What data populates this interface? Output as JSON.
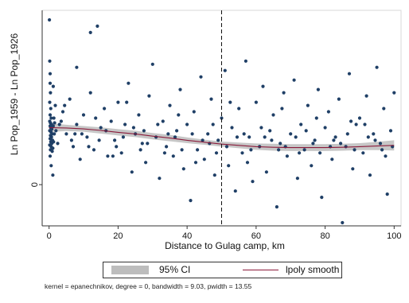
{
  "chart_data": {
    "type": "scatter",
    "xlabel": "Distance to Gulag camp, km",
    "ylabel": "Ln Pop_1959 - Ln Pop_1926",
    "xlim": [
      -2,
      102
    ],
    "ylim": [
      -1.3,
      5.5
    ],
    "x_ticks": [
      0,
      20,
      40,
      60,
      80,
      100
    ],
    "y_ticks": [
      0
    ],
    "grid": false,
    "reference_line": {
      "x": 50,
      "style": "dashed"
    },
    "smooth": {
      "name": "lpoly smooth",
      "x": [
        0,
        5,
        10,
        15,
        20,
        25,
        30,
        35,
        40,
        45,
        50,
        55,
        60,
        65,
        70,
        75,
        80,
        85,
        90,
        95,
        100
      ],
      "y": [
        1.8,
        1.79,
        1.76,
        1.71,
        1.65,
        1.6,
        1.53,
        1.47,
        1.4,
        1.34,
        1.28,
        1.24,
        1.2,
        1.18,
        1.17,
        1.17,
        1.17,
        1.18,
        1.2,
        1.22,
        1.24
      ],
      "ci_lower": [
        1.66,
        1.69,
        1.67,
        1.61,
        1.55,
        1.5,
        1.43,
        1.37,
        1.31,
        1.26,
        1.2,
        1.15,
        1.1,
        1.07,
        1.06,
        1.06,
        1.06,
        1.07,
        1.09,
        1.09,
        1.08
      ],
      "ci_upper": [
        1.94,
        1.89,
        1.85,
        1.81,
        1.75,
        1.7,
        1.63,
        1.57,
        1.49,
        1.42,
        1.36,
        1.33,
        1.3,
        1.29,
        1.28,
        1.28,
        1.28,
        1.29,
        1.31,
        1.35,
        1.4
      ]
    },
    "points": [
      [
        0.1,
        5.2
      ],
      [
        0.2,
        3.9
      ],
      [
        0.3,
        3.5
      ],
      [
        0.3,
        3.2
      ],
      [
        0.4,
        2.9
      ],
      [
        0.2,
        2.6
      ],
      [
        0.5,
        2.4
      ],
      [
        0.3,
        2.2
      ],
      [
        0.6,
        2.1
      ],
      [
        0.2,
        2.0
      ],
      [
        0.4,
        1.95
      ],
      [
        0.7,
        1.9
      ],
      [
        0.3,
        1.85
      ],
      [
        0.5,
        1.8
      ],
      [
        0.8,
        1.75
      ],
      [
        0.2,
        1.7
      ],
      [
        0.6,
        1.65
      ],
      [
        0.9,
        1.6
      ],
      [
        0.4,
        1.55
      ],
      [
        0.7,
        1.5
      ],
      [
        0.3,
        1.45
      ],
      [
        1.0,
        1.4
      ],
      [
        0.5,
        1.35
      ],
      [
        0.8,
        1.3
      ],
      [
        0.2,
        1.25
      ],
      [
        0.6,
        1.2
      ],
      [
        1.1,
        1.15
      ],
      [
        0.4,
        1.1
      ],
      [
        0.9,
        1.05
      ],
      [
        0.3,
        0.9
      ],
      [
        1.2,
        1.85
      ],
      [
        1.4,
        2.1
      ],
      [
        1.5,
        1.6
      ],
      [
        1.3,
        1.35
      ],
      [
        1.6,
        1.95
      ],
      [
        1.2,
        3.1
      ],
      [
        1.8,
        2.5
      ],
      [
        2.0,
        1.7
      ],
      [
        1.1,
        0.3
      ],
      [
        0.6,
        0.6
      ],
      [
        3,
        1.9
      ],
      [
        4,
        2.3
      ],
      [
        5,
        1.6
      ],
      [
        6,
        2.7
      ],
      [
        7,
        1.2
      ],
      [
        8,
        1.9
      ],
      [
        8,
        3.7
      ],
      [
        9,
        0.8
      ],
      [
        10,
        2.2
      ],
      [
        11,
        1.5
      ],
      [
        12,
        4.8
      ],
      [
        12,
        2.9
      ],
      [
        13,
        1.1
      ],
      [
        14,
        5.0
      ],
      [
        15,
        1.8
      ],
      [
        16,
        2.4
      ],
      [
        17,
        0.9
      ],
      [
        18,
        2.0
      ],
      [
        19,
        1.4
      ],
      [
        20,
        2.6
      ],
      [
        21,
        1.0
      ],
      [
        22,
        1.9
      ],
      [
        23,
        3.2
      ],
      [
        24,
        0.4
      ],
      [
        25,
        1.6
      ],
      [
        26,
        2.2
      ],
      [
        27,
        1.3
      ],
      [
        28,
        0.7
      ],
      [
        29,
        2.8
      ],
      [
        30,
        3.8
      ],
      [
        31,
        1.5
      ],
      [
        32,
        0.2
      ],
      [
        33,
        2.0
      ],
      [
        34,
        1.2
      ],
      [
        35,
        2.5
      ],
      [
        36,
        0.9
      ],
      [
        37,
        1.7
      ],
      [
        38,
        3.0
      ],
      [
        39,
        0.5
      ],
      [
        40,
        1.9
      ],
      [
        41,
        -0.5
      ],
      [
        42,
        2.3
      ],
      [
        43,
        1.1
      ],
      [
        44,
        3.4
      ],
      [
        45,
        0.8
      ],
      [
        46,
        1.6
      ],
      [
        47,
        2.7
      ],
      [
        48,
        0.3
      ],
      [
        49,
        1.4
      ],
      [
        50,
        2.1
      ],
      [
        51,
        3.6
      ],
      [
        52,
        0.6
      ],
      [
        53,
        1.8
      ],
      [
        54,
        -0.2
      ],
      [
        55,
        2.4
      ],
      [
        56,
        1.0
      ],
      [
        57,
        3.9
      ],
      [
        58,
        1.5
      ],
      [
        59,
        0.1
      ],
      [
        60,
        2.6
      ],
      [
        61,
        1.2
      ],
      [
        62,
        3.1
      ],
      [
        63,
        0.4
      ],
      [
        64,
        1.7
      ],
      [
        65,
        2.2
      ],
      [
        66,
        -0.7
      ],
      [
        67,
        1.3
      ],
      [
        68,
        2.9
      ],
      [
        69,
        0.9
      ],
      [
        70,
        1.6
      ],
      [
        71,
        3.3
      ],
      [
        72,
        0.2
      ],
      [
        73,
        1.9
      ],
      [
        74,
        1.1
      ],
      [
        75,
        2.5
      ],
      [
        76,
        0.6
      ],
      [
        77,
        1.4
      ],
      [
        78,
        3.0
      ],
      [
        79,
        -0.4
      ],
      [
        80,
        1.8
      ],
      [
        81,
        2.3
      ],
      [
        82,
        0.8
      ],
      [
        83,
        1.5
      ],
      [
        84,
        2.7
      ],
      [
        85,
        -1.2
      ],
      [
        86,
        1.2
      ],
      [
        87,
        3.5
      ],
      [
        88,
        0.5
      ],
      [
        89,
        1.9
      ],
      [
        90,
        2.1
      ],
      [
        91,
        1.0
      ],
      [
        92,
        2.8
      ],
      [
        93,
        0.3
      ],
      [
        94,
        1.6
      ],
      [
        95,
        3.7
      ],
      [
        96,
        1.3
      ],
      [
        97,
        2.4
      ],
      [
        98,
        -0.3
      ],
      [
        99,
        1.7
      ],
      [
        100,
        2.9
      ],
      [
        4.5,
        2.5
      ],
      [
        9.5,
        1.6
      ],
      [
        13.5,
        2.1
      ],
      [
        18.5,
        0.9
      ],
      [
        22.5,
        2.6
      ],
      [
        27.5,
        1.7
      ],
      [
        33.5,
        1.0
      ],
      [
        37.5,
        2.2
      ],
      [
        42.5,
        0.7
      ],
      [
        47.5,
        1.9
      ],
      [
        52.5,
        2.6
      ],
      [
        57.5,
        0.7
      ],
      [
        62.5,
        1.5
      ],
      [
        67.5,
        2.4
      ],
      [
        72.5,
        1.0
      ],
      [
        77.5,
        2.1
      ],
      [
        82.5,
        1.4
      ],
      [
        87.5,
        2.0
      ],
      [
        92.5,
        1.5
      ],
      [
        97.5,
        0.9
      ],
      [
        6.5,
        1.4
      ],
      [
        16.5,
        1.7
      ],
      [
        26.5,
        1.1
      ],
      [
        36.5,
        1.5
      ],
      [
        46.5,
        1.3
      ],
      [
        56.5,
        1.6
      ],
      [
        66.5,
        1.1
      ],
      [
        76.5,
        1.3
      ],
      [
        86.5,
        1.6
      ],
      [
        96.5,
        1.1
      ],
      [
        2.5,
        1.3
      ],
      [
        11.5,
        1.2
      ],
      [
        21.5,
        1.5
      ],
      [
        31.5,
        1.9
      ],
      [
        41.5,
        1.6
      ],
      [
        51.5,
        1.2
      ],
      [
        61.5,
        1.8
      ],
      [
        71.5,
        1.5
      ],
      [
        81.5,
        1.2
      ],
      [
        91.5,
        1.9
      ],
      [
        3.5,
        2.0
      ],
      [
        7.5,
        1.6
      ],
      [
        14.5,
        1.4
      ],
      [
        24.5,
        1.8
      ],
      [
        34.5,
        1.6
      ],
      [
        44.5,
        1.4
      ],
      [
        54.5,
        1.5
      ],
      [
        64.5,
        1.4
      ],
      [
        74.5,
        1.7
      ],
      [
        84.5,
        1.3
      ],
      [
        94.5,
        1.4
      ],
      [
        99.5,
        1.2
      ],
      [
        58.5,
        1.1
      ],
      [
        68.5,
        1.2
      ],
      [
        78.5,
        1.0
      ],
      [
        88.5,
        1.1
      ],
      [
        48.5,
        1.0
      ],
      [
        38.5,
        1.1
      ],
      [
        28.5,
        1.3
      ],
      [
        19.5,
        1.2
      ]
    ]
  },
  "legend": {
    "ci_label": "95% CI",
    "line_label": "lpoly smooth"
  },
  "note": "kernel = epanechnikov, degree = 0, bandwidth = 9.03, pwidth = 13.55",
  "colors": {
    "point": "#1f3f66",
    "smooth": "#8a1a3a",
    "ci": "#bdbdbd",
    "plot_border": "#d9d9d9",
    "axis": "#333333"
  }
}
